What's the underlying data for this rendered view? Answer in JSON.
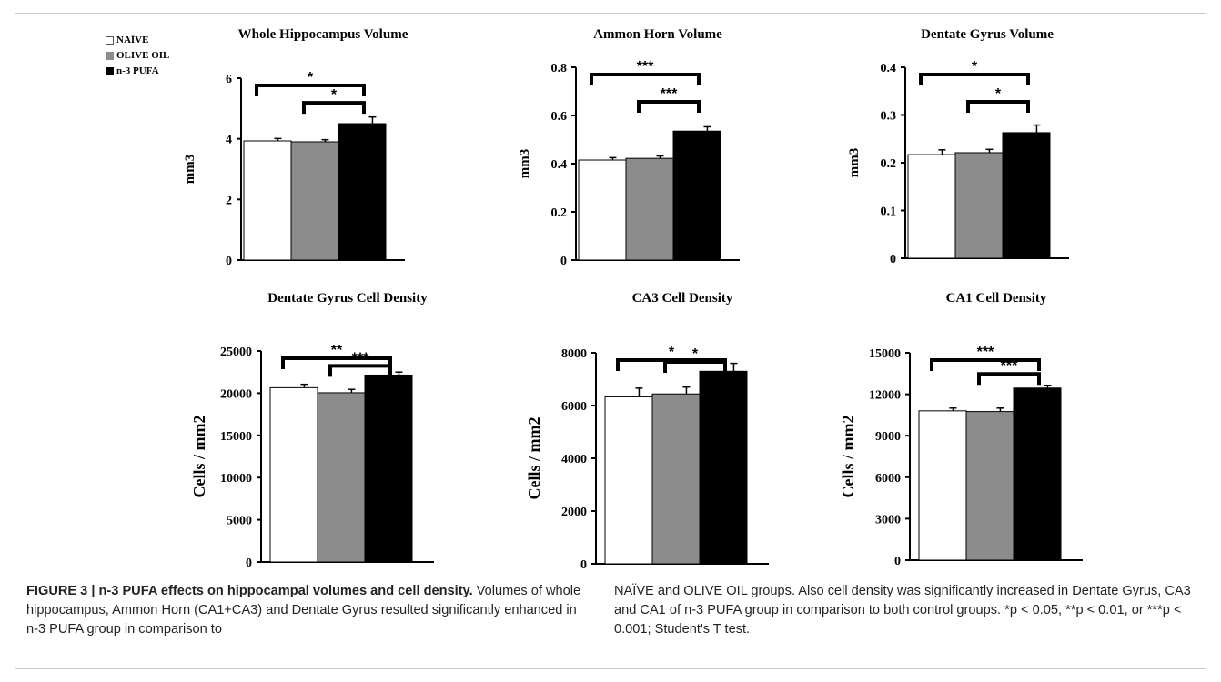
{
  "legend": [
    {
      "label": "NAÏVE",
      "color": "#ffffff"
    },
    {
      "label": "OLIVE OIL",
      "color": "#8c8c8c"
    },
    {
      "label": "n-3 PUFA",
      "color": "#000000"
    }
  ],
  "chart_data": [
    {
      "type": "bar",
      "title": "Whole Hippocampus Volume",
      "ylabel": "mm3",
      "categories": [
        "NAÏVE",
        "OLIVE OIL",
        "n-3 PUFA"
      ],
      "values": [
        3.93,
        3.9,
        4.5
      ],
      "errors": [
        0.08,
        0.07,
        0.22
      ],
      "ylim": [
        0,
        6
      ],
      "ticks": [
        "0",
        "2",
        "4",
        "6"
      ],
      "significance": [
        {
          "from": 0,
          "to": 2,
          "label": "*"
        },
        {
          "from": 1,
          "to": 2,
          "label": "*"
        }
      ]
    },
    {
      "type": "bar",
      "title": "Ammon Horn Volume",
      "ylabel": "mm3",
      "categories": [
        "NAÏVE",
        "OLIVE OIL",
        "n-3 PUFA"
      ],
      "values": [
        0.415,
        0.422,
        0.535
      ],
      "errors": [
        0.01,
        0.01,
        0.018
      ],
      "ylim": [
        0,
        0.8
      ],
      "ticks": [
        "0",
        "0.2",
        "0.4",
        "0.6",
        "0.8"
      ],
      "significance": [
        {
          "from": 0,
          "to": 2,
          "label": "***"
        },
        {
          "from": 1,
          "to": 2,
          "label": "***"
        }
      ]
    },
    {
      "type": "bar",
      "title": "Dentate Gyrus Volume",
      "ylabel": "mm3",
      "categories": [
        "NAÏVE",
        "OLIVE OIL",
        "n-3 PUFA"
      ],
      "values": [
        0.217,
        0.221,
        0.263
      ],
      "errors": [
        0.01,
        0.007,
        0.016
      ],
      "ylim": [
        0,
        0.4
      ],
      "ticks": [
        "0",
        "0.1",
        "0.2",
        "0.3",
        "0.4"
      ],
      "significance": [
        {
          "from": 0,
          "to": 2,
          "label": "*"
        },
        {
          "from": 1,
          "to": 2,
          "label": "*"
        }
      ]
    },
    {
      "type": "bar",
      "title": "Dentate Gyrus Cell Density",
      "ylabel": "Cells / mm2",
      "categories": [
        "NAÏVE",
        "OLIVE OIL",
        "n-3 PUFA"
      ],
      "values": [
        20650,
        20050,
        22150
      ],
      "errors": [
        400,
        400,
        350
      ],
      "ylim": [
        0,
        25000
      ],
      "ticks": [
        "0",
        "5000",
        "10000",
        "15000",
        "20000",
        "25000"
      ],
      "significance": [
        {
          "from": 0,
          "to": 2,
          "label": "**"
        },
        {
          "from": 1,
          "to": 2,
          "label": "***"
        }
      ]
    },
    {
      "type": "bar",
      "title": "CA3 Cell Density",
      "ylabel": "Cells / mm2",
      "categories": [
        "NAÏVE",
        "OLIVE OIL",
        "n-3 PUFA"
      ],
      "values": [
        6330,
        6440,
        7300
      ],
      "errors": [
        330,
        260,
        300
      ],
      "ylim": [
        0,
        8000
      ],
      "ticks": [
        "0",
        "2000",
        "4000",
        "6000",
        "8000"
      ],
      "significance": [
        {
          "from": 0,
          "to": 2,
          "label": "*"
        },
        {
          "from": 1,
          "to": 2,
          "label": "*"
        }
      ]
    },
    {
      "type": "bar",
      "title": "CA1 Cell Density",
      "ylabel": "Cells / mm2",
      "categories": [
        "NAÏVE",
        "OLIVE OIL",
        "n-3 PUFA"
      ],
      "values": [
        10800,
        10750,
        12450
      ],
      "errors": [
        200,
        250,
        200
      ],
      "ylim": [
        0,
        15000
      ],
      "ticks": [
        "0",
        "3000",
        "6000",
        "9000",
        "12000",
        "15000"
      ],
      "significance": [
        {
          "from": 0,
          "to": 2,
          "label": "***"
        },
        {
          "from": 1,
          "to": 2,
          "label": "***"
        }
      ]
    }
  ],
  "caption": {
    "lead": "FIGURE 3 | n-3 PUFA effects on hippocampal volumes and cell density.",
    "col1_text": " Volumes of whole hippocampus, Ammon Horn (CA1+CA3) and Dentate Gyrus resulted significantly enhanced in n-3 PUFA group in comparison to",
    "col2_text": "NAÏVE and OLIVE OIL groups. Also cell density was significantly increased in Dentate Gyrus, CA3 and CA1 of n-3 PUFA group in comparison to both control groups. *p < 0.05, **p < 0.01, or ***p < 0.001; Student's T test."
  }
}
